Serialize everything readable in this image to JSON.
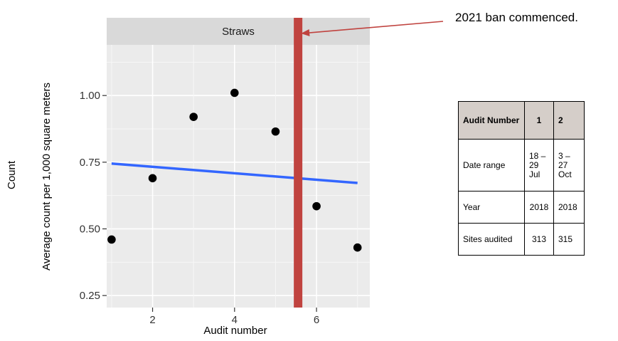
{
  "chart_data": {
    "type": "scatter",
    "facet_title": "Straws",
    "x": [
      1,
      2,
      3,
      4,
      5,
      6,
      7
    ],
    "y": [
      0.46,
      0.69,
      0.92,
      1.01,
      0.865,
      0.585,
      0.43
    ],
    "trend": {
      "x": [
        1,
        7
      ],
      "y": [
        0.745,
        0.672
      ]
    },
    "vline_x": 5.55,
    "xlabel": "Audit number",
    "ylabel": "Average count per 1,000 square meters",
    "outer_ylabel": "Count",
    "xlim": [
      0.88,
      7.3
    ],
    "ylim": [
      0.205,
      1.19
    ],
    "xticks": [
      2,
      4,
      6
    ],
    "yticks": [
      0.25,
      0.5,
      0.75,
      1.0
    ],
    "ytick_labels": [
      "0.25",
      "0.50",
      "0.75",
      "1.00"
    ],
    "grid": true,
    "colors": {
      "points": "#000000",
      "trend": "#3366ff",
      "vline": "#c0433f",
      "panel": "#ebebeb",
      "strip": "#d9d9d9",
      "arrow": "#c0433f"
    }
  },
  "annotation": {
    "text": "2021 ban commenced."
  },
  "table": {
    "header": [
      "Audit Number",
      "1",
      "2"
    ],
    "rows": [
      {
        "label": "Date range",
        "cells": [
          "18 –\n29\nJul",
          "3 –\n27\nOct"
        ]
      },
      {
        "label": "Year",
        "cells": [
          "2018",
          "2018"
        ]
      },
      {
        "label": "Sites audited",
        "cells": [
          "313",
          "315"
        ]
      }
    ]
  }
}
